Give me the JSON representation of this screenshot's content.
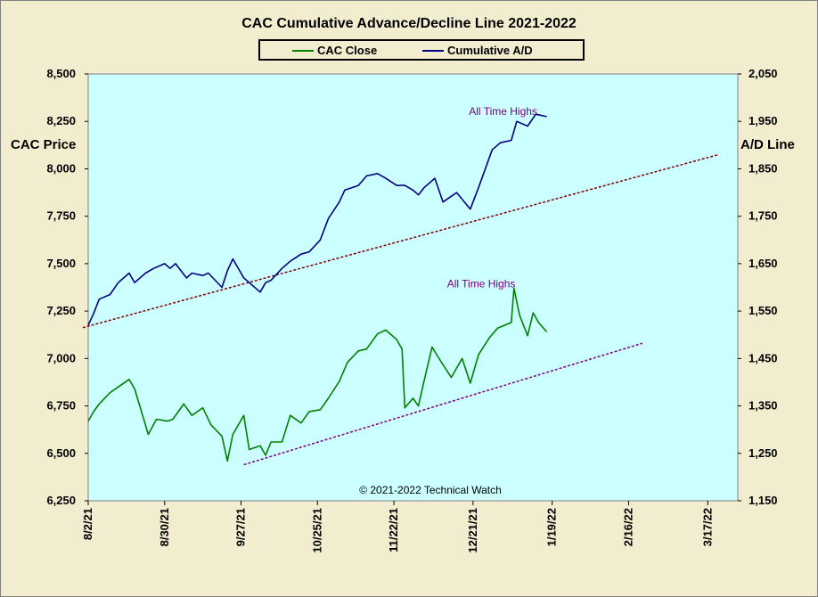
{
  "colors": {
    "frame_background": "#f2edcf",
    "plot_background": "#ccffff",
    "cac_close": "#008000",
    "cumulative_ad": "#000080",
    "ad_trendline": "#800000",
    "cac_trendline": "#800080",
    "annotation": "#800080"
  },
  "chart_data": {
    "type": "line",
    "title": "CAC Cumulative  Advance/Decline  Line  2021-2022",
    "y_left_label": "CAC Price",
    "y_right_label": "A/D Line",
    "y_left_range": [
      6250,
      8500
    ],
    "y_left_ticks": [
      "6,250",
      "6,500",
      "6,750",
      "7,000",
      "7,250",
      "7,500",
      "7,750",
      "8,000",
      "8,250",
      "8,500"
    ],
    "y_right_range": [
      1150,
      2050
    ],
    "y_right_ticks": [
      "1,150",
      "1,250",
      "1,350",
      "1,450",
      "1,550",
      "1,650",
      "1,750",
      "1,850",
      "1,950",
      "2,050"
    ],
    "x_range": [
      "2021-08-02",
      "2022-03-28"
    ],
    "x_ticks": [
      "8/2/21",
      "8/30/21",
      "9/27/21",
      "10/25/21",
      "11/22/21",
      "12/21/21",
      "1/19/22",
      "2/16/22",
      "3/17/22"
    ],
    "gridlines": false,
    "legend": "top-center",
    "series": [
      {
        "name": "CAC Close",
        "axis": "left",
        "dates": [
          "2021-08-02",
          "2021-08-04",
          "2021-08-06",
          "2021-08-10",
          "2021-08-13",
          "2021-08-17",
          "2021-08-19",
          "2021-08-24",
          "2021-08-27",
          "2021-08-31",
          "2021-09-02",
          "2021-09-06",
          "2021-09-09",
          "2021-09-13",
          "2021-09-16",
          "2021-09-20",
          "2021-09-22",
          "2021-09-24",
          "2021-09-28",
          "2021-09-30",
          "2021-10-04",
          "2021-10-06",
          "2021-10-08",
          "2021-10-12",
          "2021-10-15",
          "2021-10-19",
          "2021-10-22",
          "2021-10-26",
          "2021-10-29",
          "2021-11-02",
          "2021-11-05",
          "2021-11-09",
          "2021-11-12",
          "2021-11-16",
          "2021-11-19",
          "2021-11-23",
          "2021-11-25",
          "2021-11-26",
          "2021-11-29",
          "2021-12-01",
          "2021-12-03",
          "2021-12-06",
          "2021-12-09",
          "2021-12-13",
          "2021-12-17",
          "2021-12-20",
          "2021-12-23",
          "2021-12-27",
          "2021-12-30",
          "2022-01-04",
          "2022-01-05",
          "2022-01-07",
          "2022-01-10",
          "2022-01-12",
          "2022-01-14",
          "2022-01-17"
        ],
        "values": [
          6670,
          6720,
          6760,
          6820,
          6850,
          6890,
          6840,
          6600,
          6680,
          6670,
          6680,
          6760,
          6700,
          6740,
          6650,
          6590,
          6460,
          6600,
          6700,
          6520,
          6540,
          6490,
          6560,
          6560,
          6700,
          6660,
          6720,
          6730,
          6790,
          6880,
          6980,
          7040,
          7050,
          7130,
          7150,
          7100,
          7050,
          6740,
          6790,
          6750,
          6880,
          7060,
          6990,
          6900,
          7000,
          6870,
          7020,
          7110,
          7160,
          7190,
          7370,
          7230,
          7120,
          7240,
          7190,
          7140
        ]
      },
      {
        "name": "Cumulative A/D",
        "axis": "right",
        "dates": [
          "2021-08-02",
          "2021-08-04",
          "2021-08-06",
          "2021-08-10",
          "2021-08-13",
          "2021-08-17",
          "2021-08-19",
          "2021-08-23",
          "2021-08-26",
          "2021-08-30",
          "2021-09-01",
          "2021-09-03",
          "2021-09-07",
          "2021-09-09",
          "2021-09-13",
          "2021-09-15",
          "2021-09-20",
          "2021-09-22",
          "2021-09-24",
          "2021-09-28",
          "2021-09-30",
          "2021-10-04",
          "2021-10-06",
          "2021-10-08",
          "2021-10-12",
          "2021-10-15",
          "2021-10-19",
          "2021-10-22",
          "2021-10-26",
          "2021-10-29",
          "2021-11-02",
          "2021-11-04",
          "2021-11-09",
          "2021-11-12",
          "2021-11-16",
          "2021-11-19",
          "2021-11-23",
          "2021-11-26",
          "2021-11-29",
          "2021-12-01",
          "2021-12-03",
          "2021-12-07",
          "2021-12-10",
          "2021-12-15",
          "2021-12-20",
          "2021-12-23",
          "2021-12-28",
          "2021-12-31",
          "2022-01-04",
          "2022-01-06",
          "2022-01-10",
          "2022-01-13",
          "2022-01-17"
        ],
        "values": [
          1520,
          1545,
          1575,
          1585,
          1610,
          1630,
          1610,
          1630,
          1640,
          1650,
          1640,
          1650,
          1620,
          1630,
          1625,
          1630,
          1600,
          1635,
          1660,
          1620,
          1610,
          1590,
          1610,
          1615,
          1640,
          1655,
          1670,
          1675,
          1700,
          1745,
          1780,
          1805,
          1815,
          1835,
          1840,
          1830,
          1815,
          1815,
          1805,
          1795,
          1810,
          1830,
          1780,
          1800,
          1765,
          1810,
          1890,
          1905,
          1910,
          1950,
          1940,
          1965,
          1960
        ]
      }
    ],
    "trendlines": [
      {
        "axis": "right",
        "from": [
          "2021-07-31",
          1515
        ],
        "to": [
          "2022-03-21",
          1880
        ]
      },
      {
        "axis": "left",
        "from": [
          "2021-09-28",
          6440
        ],
        "to": [
          "2022-02-21",
          7080
        ]
      }
    ],
    "annotations": [
      {
        "text": "All Time Highs",
        "x": "2022-01-01",
        "y_left": 8285
      },
      {
        "text": "All Time Highs",
        "x": "2021-12-24",
        "y_left": 7375
      }
    ],
    "footer": "© 2021-2022  Technical Watch"
  }
}
